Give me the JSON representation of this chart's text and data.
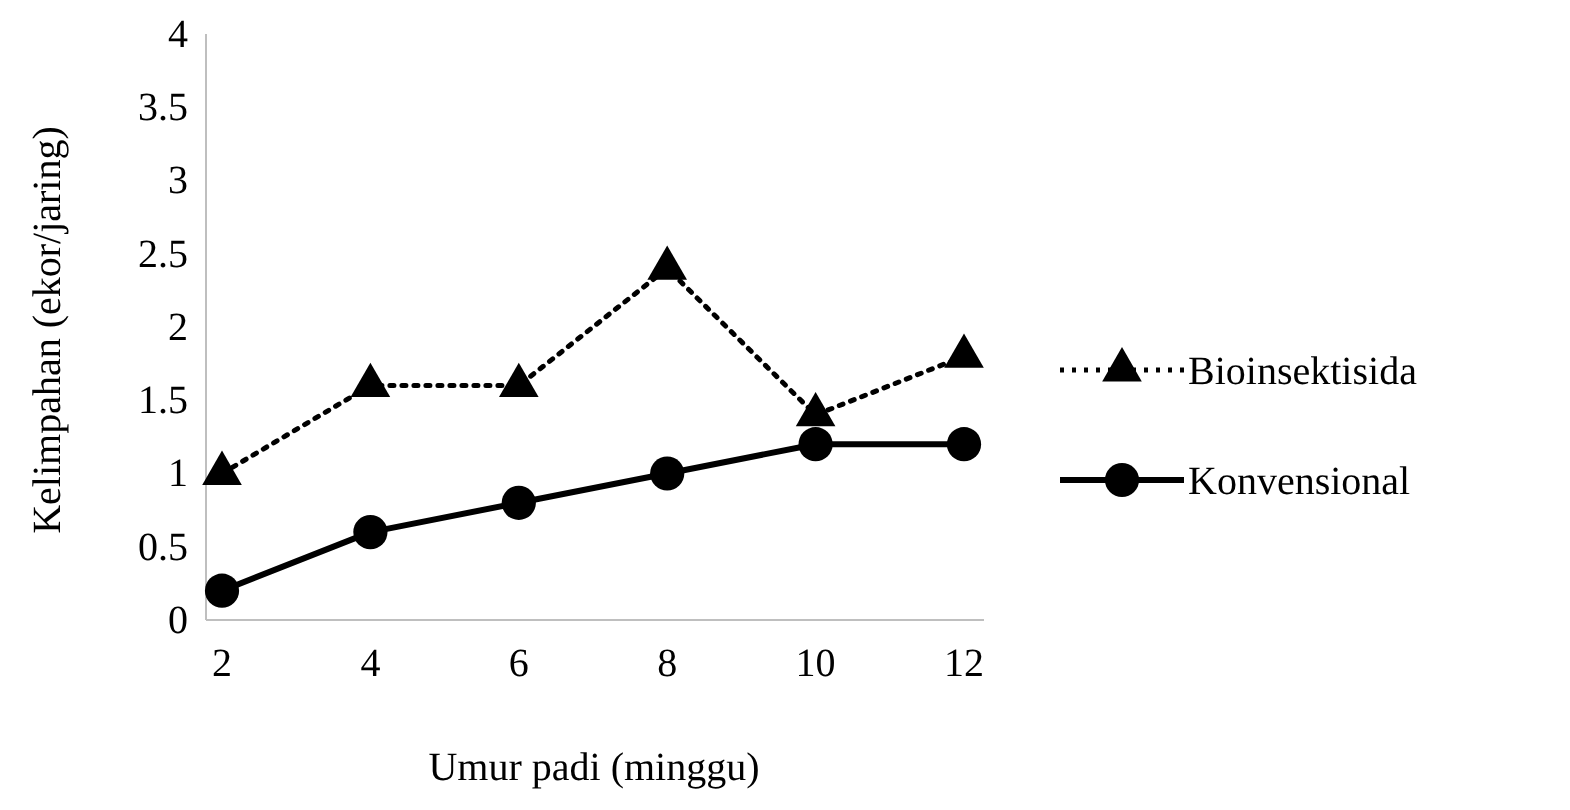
{
  "chart_data": {
    "type": "line",
    "xlabel": "Umur padi (minggu)",
    "ylabel": "Kelimpahan (ekor/jaring)",
    "categories": [
      "2",
      "4",
      "6",
      "8",
      "10",
      "12"
    ],
    "ylim": [
      0,
      4
    ],
    "yticks": [
      0,
      0.5,
      1,
      1.5,
      2,
      2.5,
      3,
      3.5,
      4
    ],
    "grid": false,
    "legend": "right",
    "series": [
      {
        "name": "Bioinsektisida",
        "color": "#000000",
        "values": [
          1.0,
          1.6,
          1.6,
          2.4,
          1.4,
          1.8
        ],
        "marker": "triangle",
        "line_style": "dotted"
      },
      {
        "name": "Konvensional",
        "color": "#000000",
        "values": [
          0.2,
          0.6,
          0.8,
          1.0,
          1.2,
          1.2
        ],
        "marker": "circle",
        "line_style": "solid"
      }
    ]
  }
}
